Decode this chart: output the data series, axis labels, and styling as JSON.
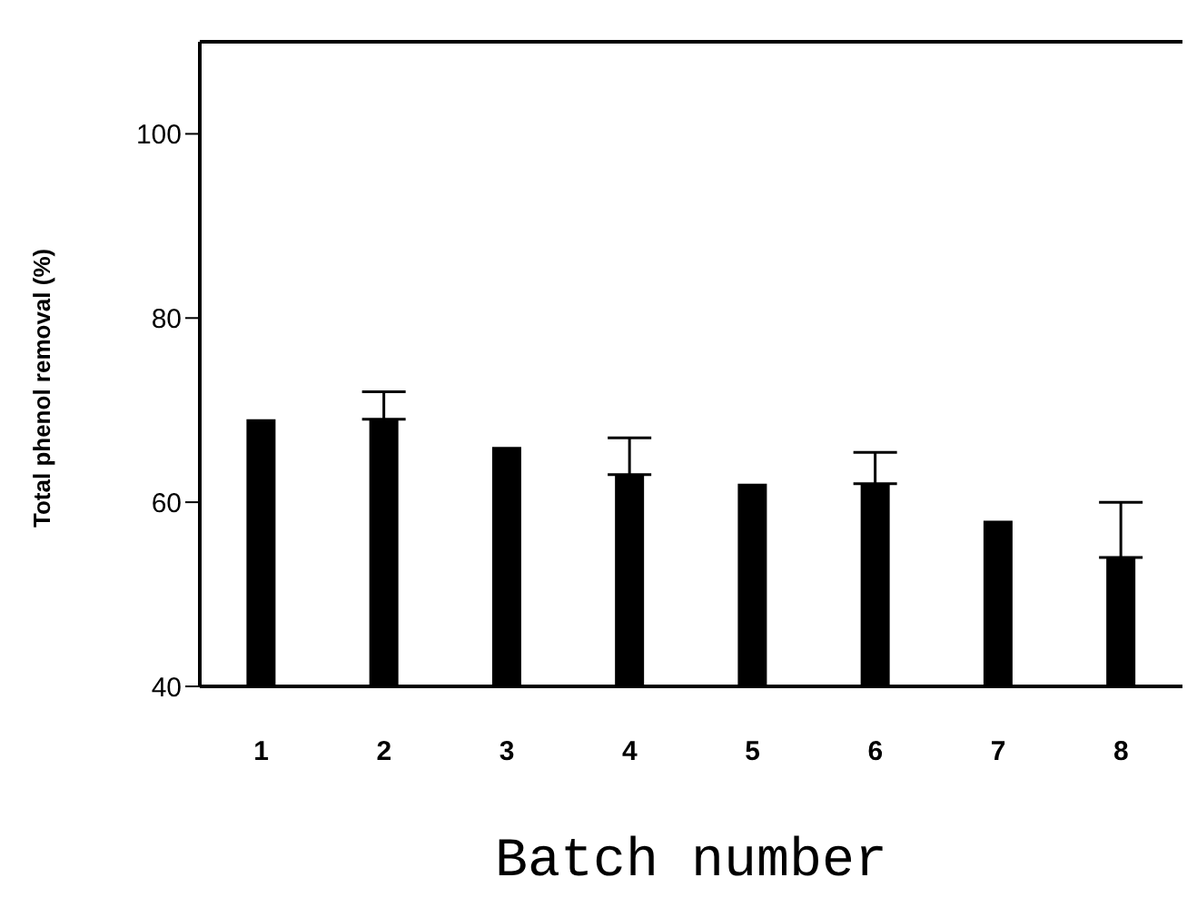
{
  "chart_data": {
    "type": "bar",
    "xlabel": "Batch number",
    "ylabel": "Total phenol removal (%)",
    "categories": [
      "1",
      "2",
      "3",
      "4",
      "5",
      "6",
      "7",
      "8"
    ],
    "values": [
      69,
      69,
      66,
      63,
      62,
      62,
      58,
      54
    ],
    "errors": [
      null,
      [
        69,
        72
      ],
      null,
      [
        63,
        67
      ],
      null,
      [
        62,
        65.4
      ],
      null,
      [
        54,
        60
      ]
    ],
    "color": "#000000",
    "ylim": [
      40,
      110
    ],
    "yticks": [
      40,
      60,
      80,
      100
    ],
    "grid": false,
    "legend": false
  }
}
